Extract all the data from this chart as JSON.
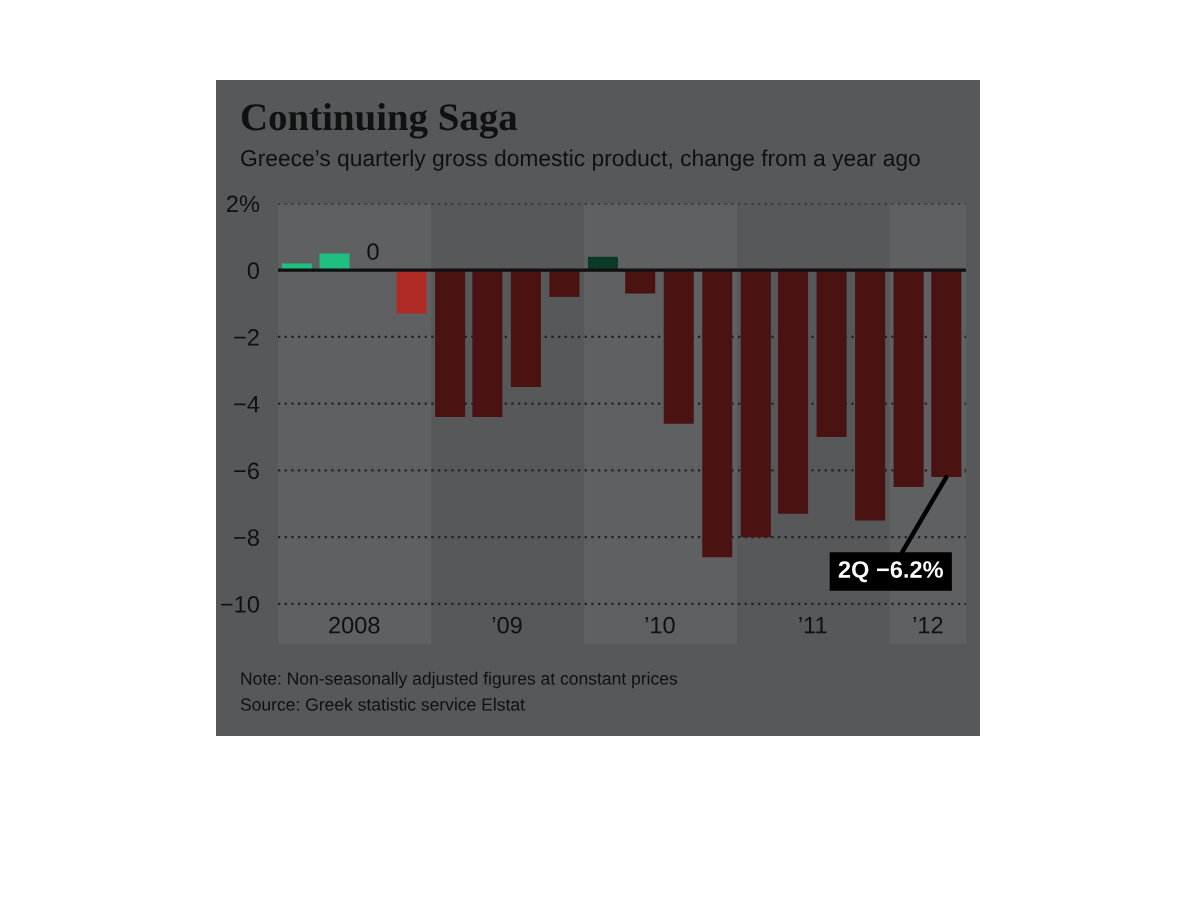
{
  "chart_data": {
    "type": "bar",
    "title": "Continuing Saga",
    "subtitle": "Greece’s quarterly gross domestic product, change from a year ago",
    "x": [
      "2008-02-15",
      "2008-05-15",
      "2008-08-15",
      "2008-11-15",
      "2009-02-15",
      "2009-05-15",
      "2009-08-15",
      "2009-11-15",
      "2010-02-15",
      "2010-05-15",
      "2010-08-15",
      "2010-11-15",
      "2011-02-15",
      "2011-05-15",
      "2011-08-15",
      "2011-11-15",
      "2012-02-15",
      "2012-05-15"
    ],
    "values": [
      0.2,
      0.5,
      0,
      -1.3,
      -4.4,
      -4.4,
      -3.5,
      -0.8,
      0.4,
      -0.7,
      -4.6,
      -8.6,
      -8.0,
      -7.3,
      -5.0,
      -7.5,
      -6.5,
      -6.2
    ],
    "colors": [
      "#1fbf82",
      "#1fbf82",
      "#1fbf82",
      "#b02a26",
      "#4b1212",
      "#4b1212",
      "#4b1212",
      "#4b1212",
      "#0b3a26",
      "#4b1212",
      "#4b1212",
      "#4b1212",
      "#4b1212",
      "#4b1212",
      "#4b1212",
      "#4b1212",
      "#4b1212",
      "#4b1212"
    ],
    "value_labels": [
      null,
      null,
      "0",
      null,
      null,
      null,
      null,
      null,
      null,
      null,
      null,
      null,
      null,
      null,
      null,
      null,
      null,
      null
    ],
    "xlim": [
      "2008-01-01",
      "2012-07-01"
    ],
    "xticks": [
      {
        "value": "2008-07-01",
        "label": "2008"
      },
      {
        "value": "2009-07-01",
        "label": "’09"
      },
      {
        "value": "2010-07-01",
        "label": "’10"
      },
      {
        "value": "2011-07-01",
        "label": "’11"
      },
      {
        "value": "2012-04-01",
        "label": "’12"
      }
    ],
    "ylim": [
      -11.2,
      2
    ],
    "yticks": [
      {
        "value": 2,
        "label": "2%"
      },
      0,
      {
        "value": -2,
        "label": "−2"
      },
      {
        "value": -4,
        "label": "−4"
      },
      {
        "value": -6,
        "label": "−6"
      },
      {
        "value": -8,
        "label": "−8"
      },
      {
        "value": -10,
        "label": "−10"
      }
    ],
    "grid": "y",
    "ref_lines": [
      {
        "axis": "y",
        "value": 0,
        "color": "#111111"
      }
    ],
    "bands": [
      {
        "axis": "x",
        "from": "2008-01-01",
        "to": "2009-01-01",
        "color": "#5f6062"
      },
      {
        "axis": "x",
        "from": "2010-01-01",
        "to": "2011-01-01",
        "color": "#5f6062"
      },
      {
        "axis": "x",
        "from": "2012-01-01",
        "to": "2012-07-01",
        "color": "#5f6062"
      }
    ],
    "annotations": [
      {
        "text": "2Q −6.2%",
        "x": "2012-05-15",
        "y": -6.2
      },
      "Note: Non-seasonally adjusted figures at constant prices",
      "Source: Greek statistic service Elstat"
    ]
  }
}
